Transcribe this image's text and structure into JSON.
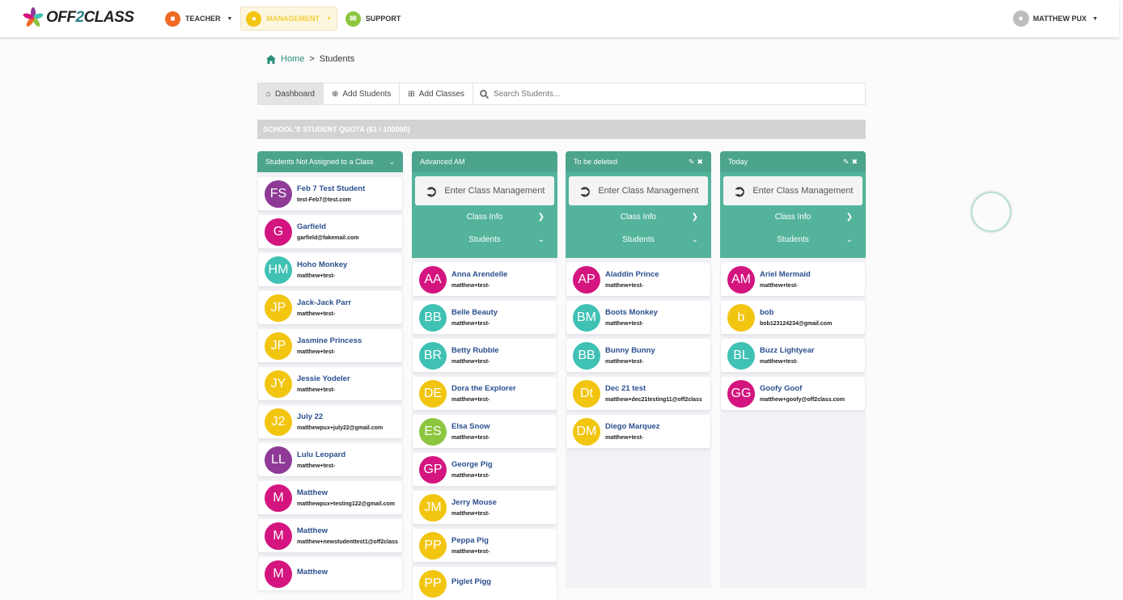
{
  "brand": {
    "name_a": "OFF",
    "name_b": "2",
    "name_c": "CLASS"
  },
  "nav": [
    {
      "label": "TEACHER",
      "color": "#f06a25",
      "icon": "briefcase"
    },
    {
      "label": "MANAGEMENT",
      "color": "#f2c511",
      "icon": "users"
    },
    {
      "label": "SUPPORT",
      "color": "#8cc63f",
      "icon": "envelope"
    }
  ],
  "user": {
    "name": "MATTHEW PUX"
  },
  "breadcrumb": {
    "home": "Home",
    "sep": ">",
    "current": "Students"
  },
  "toolbar": {
    "dashboard": "Dashboard",
    "add_students": "Add Students",
    "add_classes": "Add Classes",
    "search_placeholder": "Search Students..."
  },
  "quota": "SCHOOL'S STUDENT QUOTA (61 / 100000)",
  "class_labels": {
    "enter": "Enter Class Management",
    "info": "Class Info",
    "students": "Students"
  },
  "unassigned": {
    "title": "Students Not Assigned to a Class",
    "students": [
      {
        "initials": "FS",
        "name": "Feb 7 Test Student",
        "email": "test-Feb7@test.com",
        "color": "#8e3a96"
      },
      {
        "initials": "G",
        "name": "Garfield",
        "email": "garfield@fakemail.com",
        "color": "#d4157f"
      },
      {
        "initials": "HM",
        "name": "Hoho Monkey",
        "email": "matthew+test-",
        "color": "#3fc1b4"
      },
      {
        "initials": "JP",
        "name": "Jack-Jack Parr",
        "email": "matthew+test-",
        "color": "#f2c511"
      },
      {
        "initials": "JP",
        "name": "Jasmine Princess",
        "email": "matthew+test-",
        "color": "#f2c511"
      },
      {
        "initials": "JY",
        "name": "Jessie Yodeler",
        "email": "matthew+test-",
        "color": "#f2c511"
      },
      {
        "initials": "J2",
        "name": "July 22",
        "email": "matthewpux+july22@gmail.com",
        "color": "#f2c511"
      },
      {
        "initials": "LL",
        "name": "Lulu Leopard",
        "email": "matthew+test-",
        "color": "#8e3a96"
      },
      {
        "initials": "M",
        "name": "Matthew",
        "email": "matthewpux+testing122@gmail.com",
        "color": "#d4157f"
      },
      {
        "initials": "M",
        "name": "Matthew",
        "email": "matthew+newstudenttest1@off2class",
        "color": "#d4157f"
      },
      {
        "initials": "M",
        "name": "Matthew",
        "email": "",
        "color": "#d4157f"
      }
    ]
  },
  "classes": [
    {
      "title": "Advanced AM",
      "editable": false,
      "students": [
        {
          "initials": "AA",
          "name": "Anna Arendelle",
          "email": "matthew+test-",
          "color": "#d4157f"
        },
        {
          "initials": "BB",
          "name": "Belle Beauty",
          "email": "matthew+test-",
          "color": "#3fc1b4"
        },
        {
          "initials": "BR",
          "name": "Betty Rubble",
          "email": "matthew+test-",
          "color": "#3fc1b4"
        },
        {
          "initials": "DE",
          "name": "Dora the Explorer",
          "email": "matthew+test-",
          "color": "#f2c511"
        },
        {
          "initials": "ES",
          "name": "Elsa Snow",
          "email": "matthew+test-",
          "color": "#8cc63f"
        },
        {
          "initials": "GP",
          "name": "George Pig",
          "email": "matthew+test-",
          "color": "#d4157f"
        },
        {
          "initials": "JM",
          "name": "Jerry Mouse",
          "email": "matthew+test-",
          "color": "#f2c511"
        },
        {
          "initials": "PP",
          "name": "Peppa Pig",
          "email": "matthew+test-",
          "color": "#f2c511"
        },
        {
          "initials": "PP",
          "name": "Piglet Pigg",
          "email": "",
          "color": "#f2c511"
        }
      ]
    },
    {
      "title": "To be deleted",
      "editable": true,
      "students": [
        {
          "initials": "AP",
          "name": "Aladdin Prince",
          "email": "matthew+test-",
          "color": "#d4157f"
        },
        {
          "initials": "BM",
          "name": "Boots Monkey",
          "email": "matthew+test-",
          "color": "#3fc1b4"
        },
        {
          "initials": "BB",
          "name": "Bunny Bunny",
          "email": "matthew+test-",
          "color": "#3fc1b4"
        },
        {
          "initials": "Dt",
          "name": "Dec 21 test",
          "email": "matthew+dec21testing11@off2class",
          "color": "#f2c511"
        },
        {
          "initials": "DM",
          "name": "Diego Marquez",
          "email": "matthew+test-",
          "color": "#f2c511"
        }
      ]
    },
    {
      "title": "Today",
      "editable": true,
      "students": [
        {
          "initials": "AM",
          "name": "Ariel Mermaid",
          "email": "matthew+test-",
          "color": "#d4157f"
        },
        {
          "initials": "b",
          "name": "bob",
          "email": "bob123124234@gmail.com",
          "color": "#f2c511"
        },
        {
          "initials": "BL",
          "name": "Buzz Lightyear",
          "email": "matthew+test-",
          "color": "#3fc1b4"
        },
        {
          "initials": "GG",
          "name": "Goofy Goof",
          "email": "matthew+goofy@off2class.com",
          "color": "#d4157f"
        }
      ]
    }
  ]
}
